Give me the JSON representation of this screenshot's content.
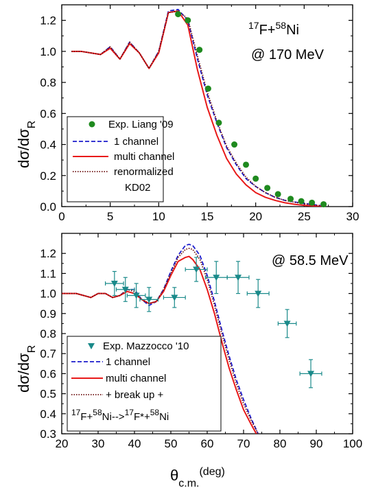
{
  "chart_data": [
    {
      "type": "line",
      "xlim": [
        0,
        30
      ],
      "ylim": [
        0.0,
        1.3
      ],
      "xticks": [
        0,
        5,
        10,
        15,
        20,
        25,
        30
      ],
      "yticks": [
        0.0,
        0.2,
        0.4,
        0.6,
        0.8,
        1.0,
        1.2
      ],
      "xtick_labels": [
        "0",
        "5",
        "10",
        "15",
        "20",
        "25",
        "30"
      ],
      "ytick_labels": [
        "0.0",
        "0.2",
        "0.4",
        "0.6",
        "0.8",
        "1.0",
        "1.2"
      ],
      "ylabel_main": "dσ/dσ",
      "ylabel_sub": "R",
      "annotation": {
        "sup1": "17",
        "t1": "F+",
        "sup2": "58",
        "t2": "Ni",
        "line2": "@ 170 MeV"
      },
      "legend": {
        "position": "lower-left",
        "entries": [
          {
            "label": "Exp. Liang '09",
            "kind": "marker"
          },
          {
            "label": "1 channel",
            "kind": "dashed"
          },
          {
            "label": "multi channel",
            "kind": "solid"
          },
          {
            "label": "renormalized",
            "kind": "dotted"
          },
          {
            "label": "KD02",
            "kind": "none"
          }
        ]
      },
      "colors": {
        "data": "#1f8a1f",
        "one_channel": "#1a1acc",
        "multi_channel": "#e81818",
        "renormalized": "#6b0f0f"
      },
      "data_points": {
        "x": [
          12.0,
          13.0,
          14.2,
          15.1,
          16.2,
          17.8,
          19.0,
          20.0,
          21.2,
          22.3,
          23.6,
          24.7,
          25.8,
          27.0
        ],
        "y": [
          1.24,
          1.2,
          1.01,
          0.76,
          0.54,
          0.4,
          0.27,
          0.18,
          0.12,
          0.08,
          0.05,
          0.035,
          0.025,
          0.015
        ]
      },
      "series": [
        {
          "name": "1 channel",
          "x": [
            1,
            2,
            3,
            4,
            5,
            6,
            7,
            8,
            9,
            10,
            11,
            12,
            13,
            14,
            15,
            16,
            17,
            18,
            19,
            20,
            21,
            22,
            23,
            24,
            25,
            26,
            27
          ],
          "y": [
            1.0,
            1.0,
            0.99,
            0.98,
            1.03,
            0.95,
            1.06,
            0.99,
            0.89,
            1.0,
            1.26,
            1.27,
            1.2,
            0.95,
            0.72,
            0.54,
            0.38,
            0.27,
            0.18,
            0.13,
            0.09,
            0.06,
            0.04,
            0.03,
            0.02,
            0.012,
            0.005
          ]
        },
        {
          "name": "multi channel",
          "x": [
            1,
            2,
            3,
            4,
            5,
            6,
            7,
            8,
            9,
            10,
            11,
            12,
            13,
            14,
            15,
            16,
            17,
            18,
            19,
            20,
            21,
            22,
            23,
            24,
            25,
            26,
            27
          ],
          "y": [
            1.0,
            1.0,
            0.99,
            0.98,
            1.02,
            0.95,
            1.05,
            0.99,
            0.89,
            0.99,
            1.25,
            1.26,
            1.17,
            0.88,
            0.64,
            0.46,
            0.31,
            0.21,
            0.14,
            0.09,
            0.06,
            0.04,
            0.025,
            0.015,
            0.008,
            0.004,
            0.0
          ]
        },
        {
          "name": "renormalized",
          "x": [
            1,
            2,
            3,
            4,
            5,
            6,
            7,
            8,
            9,
            10,
            11,
            12,
            13,
            14,
            15,
            16,
            17,
            18,
            19,
            20,
            21,
            22,
            23,
            24,
            25,
            26,
            27
          ],
          "y": [
            1.0,
            1.0,
            0.99,
            0.98,
            1.03,
            0.95,
            1.06,
            0.99,
            0.89,
            1.0,
            1.25,
            1.26,
            1.21,
            0.97,
            0.74,
            0.55,
            0.39,
            0.28,
            0.19,
            0.13,
            0.09,
            0.06,
            0.04,
            0.028,
            0.018,
            0.01,
            0.004
          ]
        }
      ]
    },
    {
      "type": "line",
      "xlim": [
        20,
        100
      ],
      "ylim": [
        0.3,
        1.3
      ],
      "xticks": [
        20,
        30,
        40,
        50,
        60,
        70,
        80,
        90,
        100
      ],
      "yticks": [
        0.3,
        0.4,
        0.5,
        0.6,
        0.7,
        0.8,
        0.9,
        1.0,
        1.1,
        1.2
      ],
      "xtick_labels": [
        "20",
        "30",
        "40",
        "50",
        "60",
        "70",
        "80",
        "90",
        "100"
      ],
      "ytick_labels": [
        "0.3",
        "0.4",
        "0.5",
        "0.6",
        "0.7",
        "0.8",
        "0.9",
        "1.0",
        "1.1",
        "1.2"
      ],
      "ylabel_main": "dσ/dσ",
      "ylabel_sub": "R",
      "xlabel_main": "θ",
      "xlabel_sub": "c.m.",
      "xlabel_sup": "(deg)",
      "annotation": {
        "line1": "@ 58.5 MeV"
      },
      "legend": {
        "position": "lower-left",
        "entries": [
          {
            "label": "Exp. Mazzocco '10",
            "kind": "marker"
          },
          {
            "label": "1 channel",
            "kind": "dashed"
          },
          {
            "label": "multi channel",
            "kind": "solid"
          },
          {
            "label": "+ break up +",
            "kind": "dotted"
          }
        ],
        "reaction": {
          "s1": "17",
          "t1": "F+",
          "s2": "58",
          "t2": "Ni-->",
          "s3": "17",
          "t3": "F*+",
          "s4": "58",
          "t4": "Ni"
        }
      },
      "colors": {
        "data": "#1a8a8a",
        "one_channel": "#1a1acc",
        "multi_channel": "#e81818",
        "breakup": "#6b0f0f"
      },
      "data_points": {
        "x": [
          34.5,
          37.5,
          40.5,
          44.0,
          51.0,
          57.0,
          62.5,
          68.5,
          74.0,
          82.0,
          88.5
        ],
        "y": [
          1.05,
          1.02,
          0.99,
          0.97,
          0.98,
          1.12,
          1.08,
          1.08,
          1.0,
          0.85,
          0.6
        ],
        "xerr": [
          2.5,
          2.5,
          2.5,
          2.5,
          3.0,
          3.0,
          3.0,
          3.0,
          3.0,
          2.5,
          3.0
        ],
        "yerr": [
          0.06,
          0.06,
          0.06,
          0.06,
          0.05,
          0.06,
          0.08,
          0.08,
          0.07,
          0.07,
          0.07
        ]
      },
      "series": [
        {
          "name": "1 channel",
          "x": [
            20,
            22,
            24,
            26,
            28,
            30,
            32,
            34,
            36,
            38,
            40,
            42,
            44,
            46,
            48,
            50,
            52,
            54,
            55,
            56,
            58,
            60,
            62,
            64,
            66,
            68,
            70,
            72,
            74
          ],
          "y": [
            1.0,
            1.0,
            1.0,
            0.99,
            0.98,
            1.0,
            1.0,
            0.98,
            0.99,
            1.02,
            1.02,
            0.97,
            0.94,
            0.96,
            1.02,
            1.11,
            1.19,
            1.24,
            1.245,
            1.24,
            1.19,
            1.09,
            0.96,
            0.82,
            0.69,
            0.57,
            0.47,
            0.38,
            0.3
          ]
        },
        {
          "name": "multi channel",
          "x": [
            20,
            22,
            24,
            26,
            28,
            30,
            32,
            34,
            36,
            38,
            40,
            42,
            44,
            46,
            48,
            50,
            52,
            54,
            55,
            56,
            58,
            60,
            62,
            64,
            66,
            68,
            70,
            72,
            73.5
          ],
          "y": [
            1.0,
            1.0,
            1.0,
            0.99,
            0.98,
            1.0,
            1.0,
            0.98,
            0.99,
            1.01,
            1.0,
            0.97,
            0.95,
            0.96,
            1.01,
            1.09,
            1.16,
            1.18,
            1.185,
            1.17,
            1.12,
            1.02,
            0.9,
            0.76,
            0.63,
            0.52,
            0.42,
            0.35,
            0.3
          ]
        },
        {
          "name": "+ break up +",
          "x": [
            20,
            22,
            24,
            26,
            28,
            30,
            32,
            34,
            36,
            38,
            40,
            42,
            44,
            46,
            48,
            50,
            52,
            54,
            55,
            56,
            58,
            60,
            62,
            64,
            66,
            68,
            70,
            72,
            74
          ],
          "y": [
            1.0,
            1.0,
            1.0,
            0.99,
            0.98,
            1.0,
            1.0,
            0.98,
            0.99,
            1.02,
            1.01,
            0.97,
            0.95,
            0.96,
            1.02,
            1.1,
            1.18,
            1.22,
            1.225,
            1.22,
            1.17,
            1.07,
            0.94,
            0.8,
            0.67,
            0.55,
            0.45,
            0.37,
            0.3
          ]
        }
      ]
    }
  ]
}
